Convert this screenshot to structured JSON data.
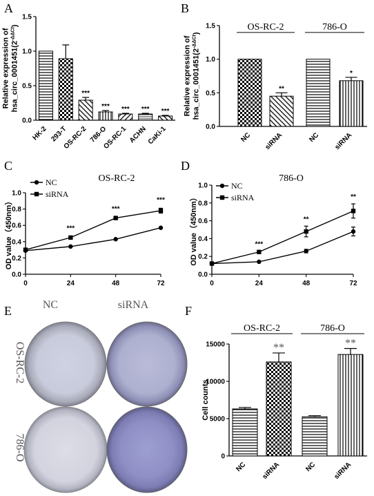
{
  "chart_data": [
    {
      "panel": "A",
      "type": "bar",
      "ylabel": "Relative expression of\nhsa_circ_0001451(2^-ΔΔCt)",
      "ylim": [
        0,
        1.5
      ],
      "yticks": [
        "0.0",
        "0.5",
        "1.0",
        "1.5"
      ],
      "categories": [
        "HK-2",
        "293-T",
        "OS-RC-2",
        "786-O",
        "OS-RC-1",
        "ACHN",
        "CaKi-1"
      ],
      "values": [
        1.0,
        0.89,
        0.29,
        0.12,
        0.09,
        0.09,
        0.06
      ],
      "errors": [
        0,
        0.2,
        0.04,
        0.02,
        0.01,
        0.01,
        0.01
      ],
      "significance": [
        "",
        "",
        "***",
        "***",
        "***",
        "***",
        "***"
      ],
      "patterns": [
        "hlines",
        "checker",
        "dlines",
        "vlines",
        "dlines2",
        "hfine",
        "dlines"
      ]
    },
    {
      "panel": "B",
      "type": "bar",
      "ylabel": "Relative expression of\nhsa_circ_0001451(2^-ΔΔCt)",
      "ylim": [
        0,
        1.5
      ],
      "yticks": [
        "0.0",
        "0.5",
        "1.0",
        "1.5"
      ],
      "groups": [
        "OS-RC-2",
        "786-O"
      ],
      "categories": [
        "NC",
        "siRNA",
        "NC",
        "siRNA"
      ],
      "values": [
        1.0,
        0.45,
        1.0,
        0.68
      ],
      "errors": [
        0,
        0.05,
        0,
        0.05
      ],
      "significance": [
        "",
        "**",
        "",
        "*"
      ],
      "patterns": [
        "checker",
        "dlines",
        "hlines",
        "vlines"
      ]
    },
    {
      "panel": "C",
      "type": "line",
      "title": "OS-RC-2",
      "ylabel": "OD value（450nm）",
      "x": [
        0,
        24,
        48,
        72
      ],
      "xticks": [
        "0",
        "24",
        "48",
        "72"
      ],
      "ylim": [
        0,
        1.0
      ],
      "yticks": [
        "0.0",
        "0.2",
        "0.4",
        "0.6",
        "0.8",
        "1.0"
      ],
      "series": [
        {
          "name": "NC",
          "marker": "circle",
          "values": [
            0.29,
            0.34,
            0.43,
            0.57
          ],
          "errors": [
            0.01,
            0.01,
            0.01,
            0.01
          ]
        },
        {
          "name": "siRNA",
          "marker": "square",
          "values": [
            0.3,
            0.45,
            0.69,
            0.78
          ],
          "errors": [
            0.01,
            0.01,
            0.01,
            0.03
          ]
        }
      ],
      "significance": [
        "",
        "***",
        "***",
        "***"
      ]
    },
    {
      "panel": "D",
      "type": "line",
      "title": "786-O",
      "ylabel": "OD value（450nm）",
      "x": [
        0,
        24,
        48,
        72
      ],
      "xticks": [
        "0",
        "24",
        "48",
        "72"
      ],
      "ylim": [
        0,
        1.0
      ],
      "yticks": [
        "0.0",
        "0.2",
        "0.4",
        "0.6",
        "0.8",
        "1.0"
      ],
      "series": [
        {
          "name": "NC",
          "marker": "circle",
          "values": [
            0.12,
            0.14,
            0.26,
            0.48
          ],
          "errors": [
            0.01,
            0.01,
            0.02,
            0.05
          ]
        },
        {
          "name": "siRNA",
          "marker": "square",
          "values": [
            0.12,
            0.25,
            0.48,
            0.71
          ],
          "errors": [
            0.01,
            0.01,
            0.06,
            0.08
          ]
        }
      ],
      "significance": [
        "",
        "***",
        "**",
        "**"
      ]
    },
    {
      "panel": "F",
      "type": "bar",
      "ylabel": "Cell counts",
      "ylim": [
        0,
        15000
      ],
      "yticks": [
        "0",
        "5000",
        "10000",
        "15000"
      ],
      "groups": [
        "OS-RC-2",
        "786-O"
      ],
      "categories": [
        "NC",
        "siRNA",
        "NC",
        "siRNA"
      ],
      "values": [
        6300,
        12600,
        5250,
        13600
      ],
      "errors": [
        200,
        1200,
        150,
        800
      ],
      "significance": [
        "",
        "**",
        "",
        "**"
      ],
      "patterns": [
        "hlines",
        "checker",
        "hlines",
        "vlines"
      ]
    }
  ],
  "panels": {
    "A": "A",
    "B": "B",
    "C": "C",
    "D": "D",
    "E": "E",
    "F": "F"
  },
  "panel_e": {
    "columns": [
      "NC",
      "siRNA"
    ],
    "rows": [
      "OS-RC-2",
      "786-O"
    ]
  }
}
